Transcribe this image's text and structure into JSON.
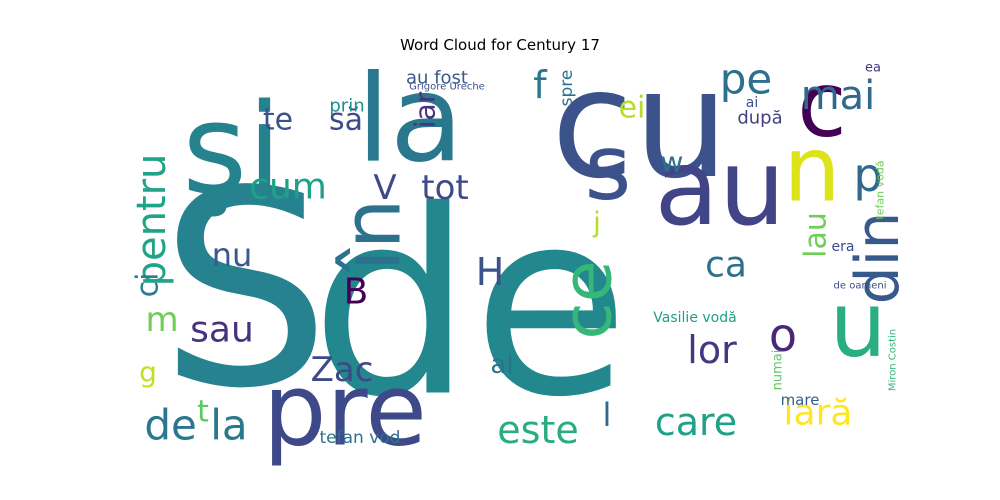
{
  "chart_data": {
    "type": "wordcloud",
    "title": "Word Cloud for Century 17",
    "colormap": "viridis",
    "background": "#ffffff",
    "words": [
      {
        "text": "de",
        "weight": 1.0,
        "color": "#23888e"
      },
      {
        "text": "S",
        "weight": 0.98,
        "color": "#26828e"
      },
      {
        "text": "cu",
        "weight": 0.52,
        "color": "#3b528b"
      },
      {
        "text": "şi",
        "weight": 0.5,
        "color": "#25838e"
      },
      {
        "text": "la",
        "weight": 0.48,
        "color": "#2a788e"
      },
      {
        "text": "au",
        "weight": 0.44,
        "color": "#414487"
      },
      {
        "text": "pre",
        "weight": 0.42,
        "color": "#3e4989"
      },
      {
        "text": "în",
        "weight": 0.4,
        "color": "#2c728e"
      },
      {
        "text": "s",
        "weight": 0.36,
        "color": "#3b528b"
      },
      {
        "text": "n",
        "weight": 0.34,
        "color": "#dde318"
      },
      {
        "text": "c",
        "weight": 0.34,
        "color": "#440154"
      },
      {
        "text": "u",
        "weight": 0.33,
        "color": "#29af7f"
      },
      {
        "text": "ce",
        "weight": 0.3,
        "color": "#35b779"
      },
      {
        "text": "din",
        "weight": 0.26,
        "color": "#38598c"
      },
      {
        "text": "de la",
        "weight": 0.22,
        "color": "#2a788e"
      },
      {
        "text": "pe",
        "weight": 0.2,
        "color": "#2d708e"
      },
      {
        "text": "mai",
        "weight": 0.18,
        "color": "#31688e"
      },
      {
        "text": "p",
        "weight": 0.18,
        "color": "#31688e"
      },
      {
        "text": "pentru",
        "weight": 0.16,
        "color": "#20a386"
      },
      {
        "text": "este",
        "weight": 0.16,
        "color": "#27ad81"
      },
      {
        "text": "care",
        "weight": 0.16,
        "color": "#1fa088"
      },
      {
        "text": "iară",
        "weight": 0.15,
        "color": "#fde725"
      },
      {
        "text": "lor",
        "weight": 0.14,
        "color": "#453781"
      },
      {
        "text": "o",
        "weight": 0.14,
        "color": "#482878"
      },
      {
        "text": "sau",
        "weight": 0.13,
        "color": "#46327e"
      },
      {
        "text": "ca",
        "weight": 0.13,
        "color": "#2d708e"
      },
      {
        "text": "cum",
        "weight": 0.12,
        "color": "#1fa088"
      },
      {
        "text": "tot",
        "weight": 0.12,
        "color": "#3e4a89"
      },
      {
        "text": "Zac",
        "weight": 0.12,
        "color": "#3e4989"
      },
      {
        "text": "nu",
        "weight": 0.11,
        "color": "#38598c"
      },
      {
        "text": "să",
        "weight": 0.11,
        "color": "#3e4a89"
      },
      {
        "text": "te",
        "weight": 0.11,
        "color": "#3b528b"
      },
      {
        "text": "ei",
        "weight": 0.11,
        "color": "#b5de2b"
      },
      {
        "text": "f",
        "weight": 0.11,
        "color": "#2a788e"
      },
      {
        "text": "H",
        "weight": 0.11,
        "color": "#3b528b"
      },
      {
        "text": "B",
        "weight": 0.1,
        "color": "#440154"
      },
      {
        "text": "V",
        "weight": 0.1,
        "color": "#3e4989"
      },
      {
        "text": "m",
        "weight": 0.1,
        "color": "#6ece58"
      },
      {
        "text": "l",
        "weight": 0.1,
        "color": "#31688e"
      },
      {
        "text": "iar",
        "weight": 0.09,
        "color": "#46327e"
      },
      {
        "text": "lau",
        "weight": 0.09,
        "color": "#6ece58"
      },
      {
        "text": "w",
        "weight": 0.09,
        "color": "#2c728e"
      },
      {
        "text": "j",
        "weight": 0.09,
        "color": "#b5de2b"
      },
      {
        "text": "g",
        "weight": 0.09,
        "color": "#c2df23"
      },
      {
        "text": "t",
        "weight": 0.09,
        "color": "#5ec962"
      },
      {
        "text": "ci",
        "weight": 0.08,
        "color": "#287d8e"
      },
      {
        "text": "al",
        "weight": 0.08,
        "color": "#2c728e"
      },
      {
        "text": "au fost",
        "weight": 0.06,
        "color": "#38598c"
      },
      {
        "text": "prin",
        "weight": 0.06,
        "color": "#21918c"
      },
      {
        "text": "spre",
        "weight": 0.06,
        "color": "#2c728e"
      },
      {
        "text": "după",
        "weight": 0.06,
        "color": "#433e85"
      },
      {
        "text": "tefan vod",
        "weight": 0.06,
        "color": "#2c728e"
      },
      {
        "text": "Vasilie vodă",
        "weight": 0.05,
        "color": "#1fa088"
      },
      {
        "text": "numai",
        "weight": 0.04,
        "color": "#5ec962"
      },
      {
        "text": "ai",
        "weight": 0.04,
        "color": "#3b528b"
      },
      {
        "text": "ea",
        "weight": 0.04,
        "color": "#453781"
      },
      {
        "text": "era",
        "weight": 0.04,
        "color": "#3e4989"
      },
      {
        "text": "mare",
        "weight": 0.04,
        "color": "#365c8d"
      },
      {
        "text": "Grigore Ureche",
        "weight": 0.03,
        "color": "#3b528b"
      },
      {
        "text": "tefan vodă",
        "weight": 0.03,
        "color": "#6ece58"
      },
      {
        "text": "Miron Costin",
        "weight": 0.03,
        "color": "#35b779"
      },
      {
        "text": "de oameni",
        "weight": 0.03,
        "color": "#3e4989"
      }
    ]
  }
}
